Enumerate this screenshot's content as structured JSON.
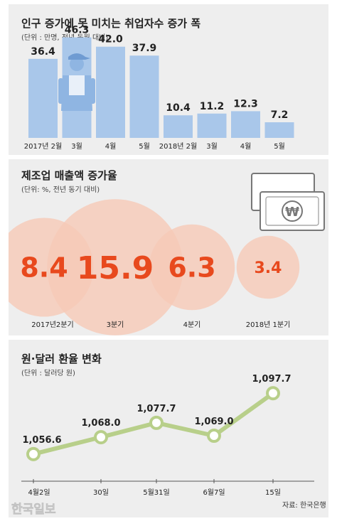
{
  "chart_data": [
    {
      "type": "bar",
      "title": "인구 증가에 못 미치는 취업자수 증가 폭",
      "subtitle": "(단위 : 만명, 전년 동월 대비)",
      "categories": [
        "2017년 2월",
        "3월",
        "4월",
        "5월",
        "2018년 2월",
        "3월",
        "4월",
        "5월"
      ],
      "values": [
        36.4,
        46.3,
        42.0,
        37.9,
        10.4,
        11.2,
        12.3,
        7.2
      ],
      "value_labels": [
        "36.4",
        "46.3",
        "42.0",
        "37.9",
        "10.4",
        "11.2",
        "12.3",
        "7.2"
      ],
      "ylim": [
        0,
        55
      ],
      "bar_color": "#a9c7ea",
      "icon": "worker-icon"
    },
    {
      "type": "bubble",
      "title": "제조업 매출액 증가율",
      "subtitle": "(단위: %, 전년 동기 대비)",
      "categories": [
        "2017년2분기",
        "3분기",
        "4분기",
        "2018년 1분기"
      ],
      "values": [
        8.4,
        15.9,
        6.3,
        3.4
      ],
      "value_labels": [
        "8.4",
        "15.9",
        "6.3",
        "3.4"
      ],
      "bubble_color": "#f6c9b6",
      "value_color": "#e8491d",
      "icon": "won-banknote-icon"
    },
    {
      "type": "line",
      "title": "원·달러 환율 변화",
      "subtitle": "(단위 : 달러당 원)",
      "categories": [
        "4월2일",
        "30일",
        "5월31일",
        "6월7일",
        "15일"
      ],
      "values": [
        1056.6,
        1068.0,
        1077.7,
        1069.0,
        1097.7
      ],
      "value_labels": [
        "1,056.6",
        "1,068.0",
        "1,077.7",
        "1,069.0",
        "1,097.7"
      ],
      "ylim": [
        1045,
        1105
      ],
      "line_color": "#b8cf8a",
      "source": "자료: 한국은행"
    }
  ],
  "watermark": "한국일보"
}
